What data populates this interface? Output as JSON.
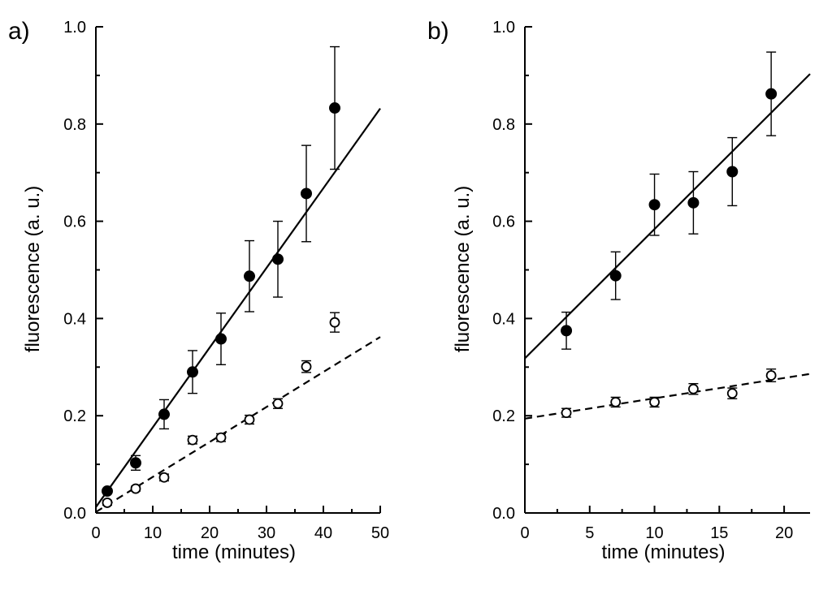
{
  "chart_data": [
    {
      "type": "scatter",
      "panel_label": "a)",
      "xlabel": "time (minutes)",
      "ylabel": "fluorescence (a. u.)",
      "xlim": [
        0,
        50
      ],
      "ylim": [
        0,
        1.0
      ],
      "xticks": [
        0,
        10,
        20,
        30,
        40,
        50
      ],
      "xtick_labels": [
        "0",
        "10",
        "20",
        "30",
        "40",
        "50"
      ],
      "yticks": [
        0.0,
        0.2,
        0.4,
        0.6,
        0.8,
        1.0
      ],
      "ytick_labels": [
        "0.0",
        "0.2",
        "0.4",
        "0.6",
        "0.8",
        "1.0"
      ],
      "series": [
        {
          "name": "filled",
          "marker": "filled-circle",
          "x": [
            2,
            7,
            12,
            17,
            22,
            27,
            32,
            37,
            42
          ],
          "y": [
            0.045,
            0.103,
            0.203,
            0.29,
            0.358,
            0.487,
            0.522,
            0.657,
            0.833
          ],
          "err": [
            0.0,
            0.015,
            0.03,
            0.044,
            0.053,
            0.073,
            0.078,
            0.099,
            0.126
          ],
          "fit": {
            "style": "solid",
            "x": [
              0,
              50
            ],
            "y": [
              0.012,
              0.832
            ]
          }
        },
        {
          "name": "open",
          "marker": "open-circle",
          "x": [
            2,
            7,
            12,
            17,
            22,
            27,
            32,
            37,
            42
          ],
          "y": [
            0.021,
            0.05,
            0.073,
            0.15,
            0.155,
            0.192,
            0.225,
            0.301,
            0.392
          ],
          "err": [
            0.005,
            0.005,
            0.007,
            0.008,
            0.008,
            0.009,
            0.01,
            0.012,
            0.02
          ],
          "fit": {
            "style": "dashed",
            "x": [
              0,
              50
            ],
            "y": [
              0.002,
              0.362
            ]
          }
        }
      ]
    },
    {
      "type": "scatter",
      "panel_label": "b)",
      "xlabel": "time (minutes)",
      "ylabel": "fluorescence (a. u.)",
      "xlim": [
        0,
        22
      ],
      "ylim": [
        0,
        1.0
      ],
      "xticks": [
        0,
        5,
        10,
        15,
        20
      ],
      "xtick_labels": [
        "0",
        "5",
        "10",
        "15",
        "20"
      ],
      "yticks": [
        0.0,
        0.2,
        0.4,
        0.6,
        0.8,
        1.0
      ],
      "ytick_labels": [
        "0.0",
        "0.2",
        "0.4",
        "0.6",
        "0.8",
        "1.0"
      ],
      "series": [
        {
          "name": "filled",
          "marker": "filled-circle",
          "x": [
            3.2,
            7,
            10,
            13,
            16,
            19
          ],
          "y": [
            0.375,
            0.488,
            0.634,
            0.638,
            0.702,
            0.862
          ],
          "err": [
            0.038,
            0.049,
            0.063,
            0.064,
            0.07,
            0.086
          ],
          "fit": {
            "style": "solid",
            "x": [
              0,
              22
            ],
            "y": [
              0.318,
              0.903
            ]
          }
        },
        {
          "name": "open",
          "marker": "open-circle",
          "x": [
            3.2,
            7,
            10,
            13,
            16,
            19
          ],
          "y": [
            0.206,
            0.228,
            0.228,
            0.255,
            0.246,
            0.283
          ],
          "err": [
            0.009,
            0.01,
            0.01,
            0.011,
            0.011,
            0.013
          ],
          "fit": {
            "style": "dashed",
            "x": [
              0,
              22
            ],
            "y": [
              0.194,
              0.286
            ]
          }
        }
      ]
    }
  ]
}
